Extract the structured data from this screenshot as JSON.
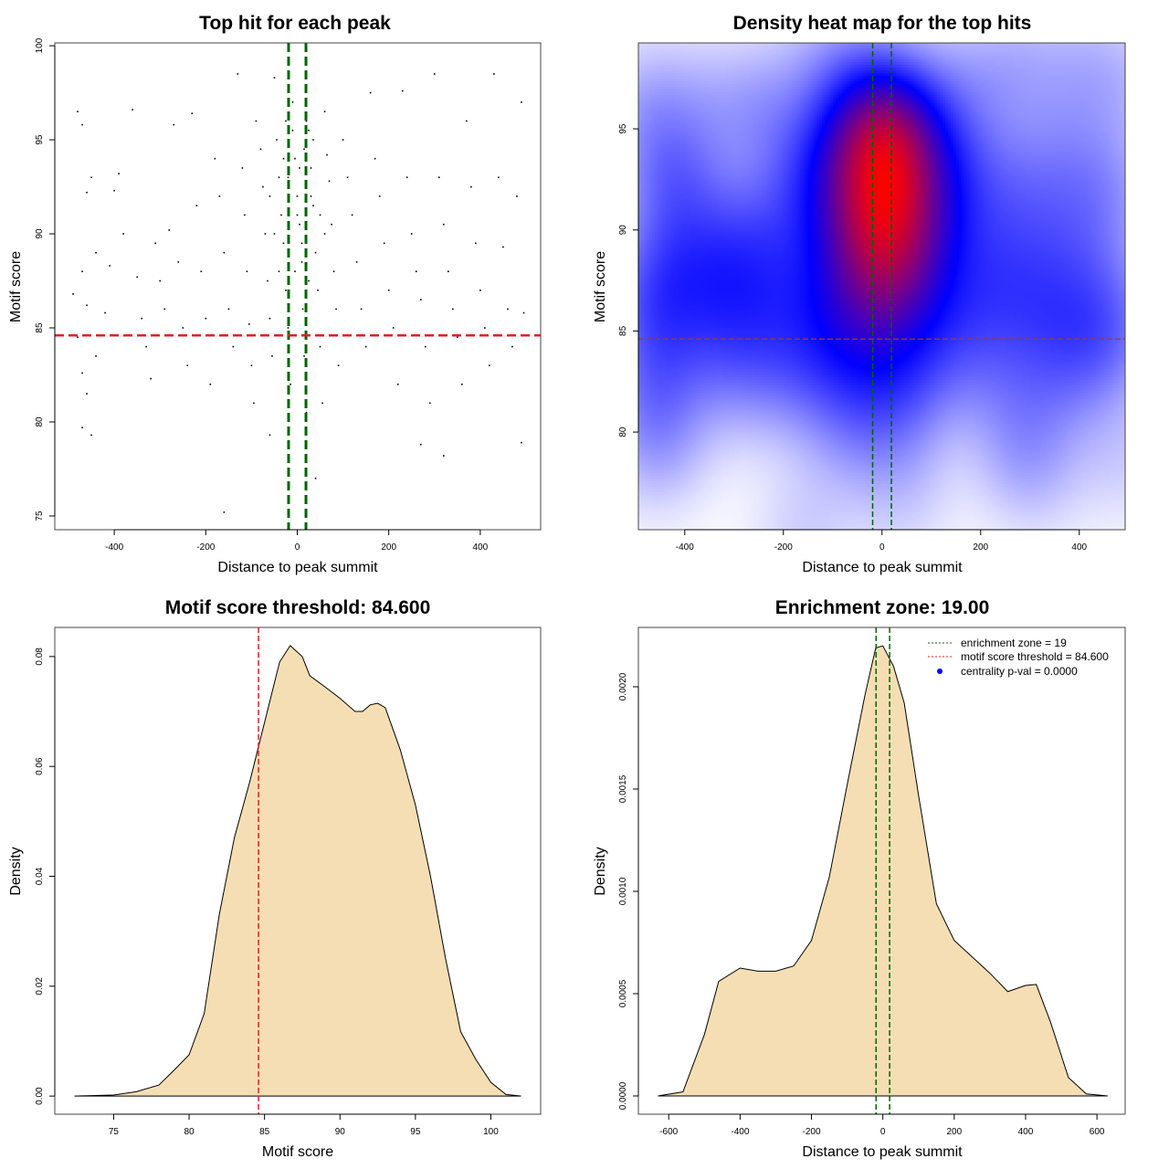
{
  "chart_data": [
    {
      "type": "scatter",
      "title": "Top hit for each peak",
      "xlabel": "Distance to peak summit",
      "ylabel": "Motif score",
      "xlim": [
        -530,
        532
      ],
      "ylim": [
        74.27,
        100.15
      ],
      "xticks": [
        -400,
        -200,
        0,
        200,
        400
      ],
      "yticks": [
        75,
        80,
        85,
        90,
        95,
        100
      ],
      "vlines": [
        {
          "x": -19,
          "color": "#006400"
        },
        {
          "x": 19,
          "color": "#006400"
        }
      ],
      "hlines": [
        {
          "y": 84.6,
          "color": "#dd2222"
        }
      ],
      "points": [
        [
          -480,
          96.5
        ],
        [
          -470,
          95.8
        ],
        [
          -460,
          92.2
        ],
        [
          -450,
          93
        ],
        [
          -440,
          89
        ],
        [
          -470,
          88
        ],
        [
          -490,
          86.8
        ],
        [
          -460,
          86.2
        ],
        [
          -480,
          84.5
        ],
        [
          -440,
          83.5
        ],
        [
          -470,
          82.6
        ],
        [
          -460,
          81.5
        ],
        [
          -470,
          79.7
        ],
        [
          -450,
          79.3
        ],
        [
          -420,
          85.8
        ],
        [
          -410,
          88.3
        ],
        [
          -400,
          92.3
        ],
        [
          -390,
          93.2
        ],
        [
          -380,
          90
        ],
        [
          -360,
          96.6
        ],
        [
          -350,
          87.7
        ],
        [
          -340,
          85.5
        ],
        [
          -330,
          84
        ],
        [
          -320,
          82.3
        ],
        [
          -310,
          89.5
        ],
        [
          -300,
          87.5
        ],
        [
          -290,
          86
        ],
        [
          -280,
          90.2
        ],
        [
          -270,
          95.8
        ],
        [
          -260,
          88.5
        ],
        [
          -250,
          85
        ],
        [
          -240,
          83
        ],
        [
          -230,
          96.4
        ],
        [
          -220,
          91.5
        ],
        [
          -210,
          88
        ],
        [
          -200,
          85.5
        ],
        [
          -190,
          82
        ],
        [
          -180,
          94
        ],
        [
          -170,
          92
        ],
        [
          -160,
          89
        ],
        [
          -150,
          86
        ],
        [
          -140,
          84
        ],
        [
          -130,
          98.5
        ],
        [
          -120,
          93.5
        ],
        [
          -115,
          91
        ],
        [
          -110,
          88
        ],
        [
          -105,
          85.2
        ],
        [
          -100,
          83
        ],
        [
          -95,
          81
        ],
        [
          -90,
          96
        ],
        [
          -80,
          94.5
        ],
        [
          -75,
          92.5
        ],
        [
          -70,
          90
        ],
        [
          -65,
          87.5
        ],
        [
          -60,
          85.5
        ],
        [
          -55,
          83.5
        ],
        [
          -50,
          98.3
        ],
        [
          -45,
          95
        ],
        [
          -40,
          93
        ],
        [
          -35,
          91
        ],
        [
          -30,
          89.5
        ],
        [
          -25,
          87
        ],
        [
          -20,
          85
        ],
        [
          -15,
          82
        ],
        [
          -10,
          97
        ],
        [
          -5,
          94
        ],
        [
          0,
          92
        ],
        [
          5,
          90.5
        ],
        [
          10,
          88.5
        ],
        [
          12,
          86
        ],
        [
          15,
          83.5
        ],
        [
          20,
          80.5
        ],
        [
          25,
          95.5
        ],
        [
          30,
          93.5
        ],
        [
          35,
          91.5
        ],
        [
          40,
          89
        ],
        [
          45,
          87
        ],
        [
          50,
          84
        ],
        [
          55,
          81
        ],
        [
          60,
          96.5
        ],
        [
          65,
          94.2
        ],
        [
          70,
          92.8
        ],
        [
          75,
          90.5
        ],
        [
          80,
          88
        ],
        [
          85,
          86
        ],
        [
          90,
          83
        ],
        [
          100,
          95
        ],
        [
          110,
          93
        ],
        [
          120,
          91
        ],
        [
          130,
          88.5
        ],
        [
          140,
          86
        ],
        [
          150,
          84
        ],
        [
          160,
          97.5
        ],
        [
          170,
          94
        ],
        [
          180,
          92
        ],
        [
          190,
          89.5
        ],
        [
          200,
          87
        ],
        [
          210,
          85
        ],
        [
          220,
          82
        ],
        [
          230,
          97.6
        ],
        [
          240,
          93
        ],
        [
          250,
          90
        ],
        [
          260,
          88
        ],
        [
          270,
          86.5
        ],
        [
          280,
          84
        ],
        [
          290,
          81
        ],
        [
          300,
          98.5
        ],
        [
          310,
          93
        ],
        [
          320,
          90.5
        ],
        [
          330,
          88
        ],
        [
          340,
          86
        ],
        [
          350,
          84.5
        ],
        [
          360,
          82
        ],
        [
          370,
          96
        ],
        [
          380,
          92.5
        ],
        [
          390,
          89.5
        ],
        [
          400,
          87
        ],
        [
          410,
          85
        ],
        [
          420,
          83
        ],
        [
          430,
          98.5
        ],
        [
          440,
          93
        ],
        [
          450,
          89.3
        ],
        [
          460,
          86
        ],
        [
          470,
          84
        ],
        [
          480,
          92
        ],
        [
          490,
          97
        ],
        [
          495,
          85.8
        ],
        [
          -160,
          75.2
        ],
        [
          40,
          77
        ],
        [
          320,
          78.2
        ],
        [
          490,
          78.9
        ],
        [
          270,
          78.8
        ],
        [
          -60,
          79.3
        ],
        [
          0,
          91
        ],
        [
          -20,
          93
        ],
        [
          15,
          94.5
        ],
        [
          30,
          92
        ],
        [
          -40,
          88
        ],
        [
          60,
          90
        ],
        [
          -10,
          95.5
        ],
        [
          20,
          96
        ],
        [
          -30,
          94
        ],
        [
          50,
          91
        ],
        [
          10,
          89.5
        ],
        [
          -50,
          90
        ],
        [
          25,
          87.5
        ],
        [
          -5,
          88
        ],
        [
          5,
          93.5
        ],
        [
          -25,
          96
        ],
        [
          35,
          95
        ],
        [
          -60,
          92
        ]
      ]
    },
    {
      "type": "heatmap",
      "title": "Density heat map for the top hits",
      "xlabel": "Distance to peak summit",
      "ylabel": "Motif score",
      "xlim": [
        -494,
        493
      ],
      "ylim": [
        75.17,
        99.25
      ],
      "xticks": [
        -400,
        -200,
        0,
        200,
        400
      ],
      "yticks": [
        80,
        85,
        90,
        95
      ],
      "colors": [
        "#ffffff",
        "#0000ff",
        "#ff0000"
      ],
      "source": "same points as top hit scatter",
      "vlines": [
        {
          "x": -19,
          "color": "#006400"
        },
        {
          "x": 19,
          "color": "#006400"
        }
      ],
      "hlines": [
        {
          "y": 84.6,
          "color": "#aa3333"
        }
      ]
    },
    {
      "type": "area",
      "title": "Motif score threshold: 84.600",
      "xlabel": "Motif score",
      "ylabel": "Density",
      "xlim": [
        71.1,
        103.3
      ],
      "ylim": [
        -0.0033,
        0.0853
      ],
      "xticks": [
        75,
        80,
        85,
        90,
        95,
        100
      ],
      "yticks": [
        0,
        0.02,
        0.04,
        0.06,
        0.08
      ],
      "ytick_labels": [
        "0.00",
        "0.02",
        "0.04",
        "0.06",
        "0.08"
      ],
      "fill": "#f5deb3",
      "vlines": [
        {
          "x": 84.6,
          "color": "#dd2222"
        }
      ],
      "hlines": [],
      "x": [
        72.4,
        75,
        76.5,
        78,
        79,
        80,
        81,
        82,
        83,
        84,
        85,
        86,
        86.7,
        87.5,
        88,
        89,
        90,
        91,
        91.5,
        92,
        92.5,
        93,
        94,
        95,
        96,
        97,
        98,
        99,
        100,
        101,
        102
      ],
      "y": [
        0,
        0.0002,
        0.0008,
        0.002,
        0.0047,
        0.0075,
        0.015,
        0.033,
        0.047,
        0.057,
        0.068,
        0.079,
        0.082,
        0.08,
        0.0765,
        0.0745,
        0.0724,
        0.07,
        0.07,
        0.0712,
        0.0715,
        0.0707,
        0.063,
        0.053,
        0.04,
        0.025,
        0.0117,
        0.0067,
        0.0025,
        0.0003,
        0
      ]
    },
    {
      "type": "area",
      "title": "Enrichment zone: 19.00",
      "xlabel": "Distance to peak summit",
      "ylabel": "Density",
      "xlim": [
        -685,
        679
      ],
      "ylim": [
        -8.93e-05,
        0.00229
      ],
      "xticks": [
        -600,
        -400,
        -200,
        0,
        200,
        400,
        600
      ],
      "yticks": [
        0,
        0.0005,
        0.001,
        0.0015,
        0.002
      ],
      "ytick_labels": [
        "0.0000",
        "0.0005",
        "0.0010",
        "0.0015",
        "0.0020"
      ],
      "fill": "#f5deb3",
      "vlines": [
        {
          "x": -19,
          "color": "#006400"
        },
        {
          "x": 19,
          "color": "#006400"
        }
      ],
      "hlines": [],
      "x": [
        -630,
        -560,
        -500,
        -460,
        -400,
        -350,
        -300,
        -250,
        -200,
        -150,
        -100,
        -50,
        -20,
        0,
        30,
        60,
        100,
        150,
        200,
        300,
        350,
        400,
        430,
        470,
        520,
        570,
        630
      ],
      "y": [
        0,
        2e-05,
        0.0003,
        0.00056,
        0.000625,
        0.00061,
        0.00061,
        0.000635,
        0.00076,
        0.00107,
        0.00152,
        0.00196,
        0.00219,
        0.0022,
        0.0021,
        0.00192,
        0.00147,
        0.00094,
        0.00076,
        0.0006,
        0.00051,
        0.00054,
        0.000545,
        0.00036,
        9e-05,
        1e-05,
        0
      ],
      "legend": {
        "position": "top-right",
        "entries": [
          {
            "label": "enrichment zone = 19",
            "color": "#006400",
            "style": "dotted"
          },
          {
            "label": "motif score threshold = 84.600",
            "color": "#dd2222",
            "style": "dotted"
          },
          {
            "label": "centrality p-val = 0.0000",
            "color": "#0000ff",
            "style": "point"
          }
        ]
      }
    }
  ]
}
